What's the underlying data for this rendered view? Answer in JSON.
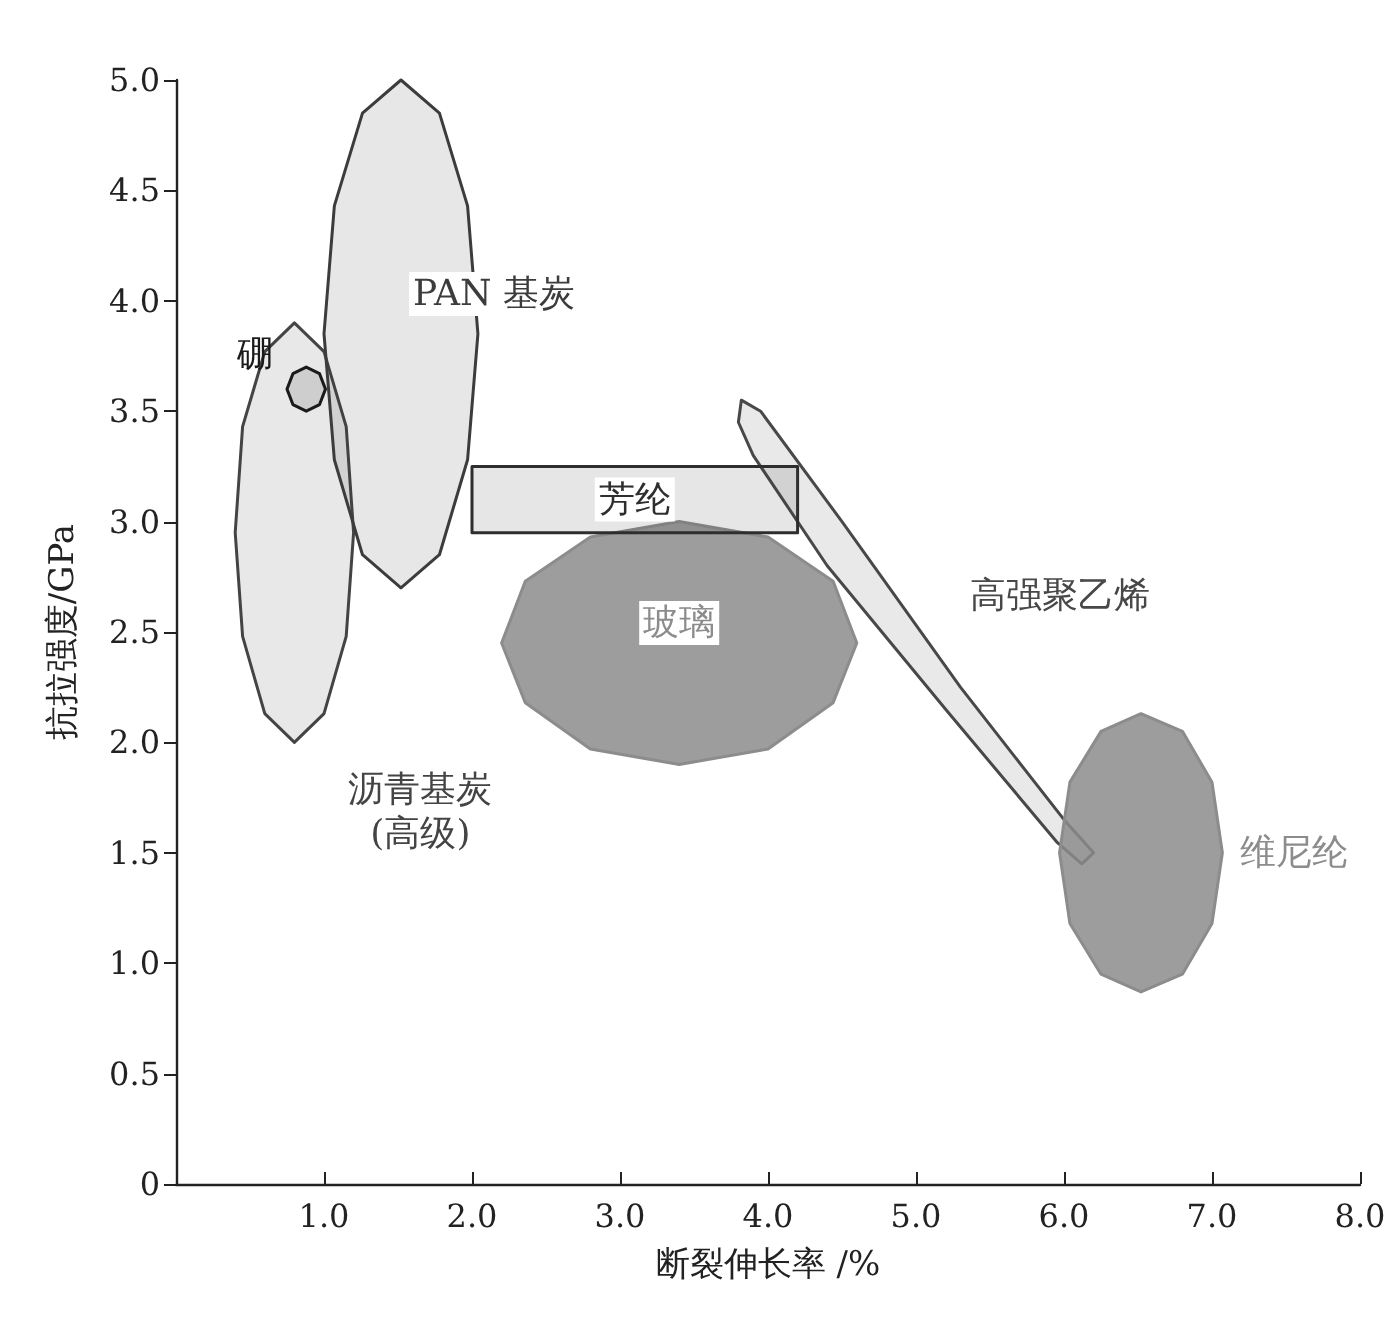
{
  "chart_data": {
    "type": "area",
    "xlabel": "断裂伸长率 /%",
    "ylabel": "抗拉强度/GPa",
    "xlim": [
      0,
      8.0
    ],
    "ylim": [
      0,
      5.0
    ],
    "xticks": [
      {
        "value": 1,
        "label": "1.0"
      },
      {
        "value": 2,
        "label": "2.0"
      },
      {
        "value": 3,
        "label": "3.0"
      },
      {
        "value": 4,
        "label": "4.0"
      },
      {
        "value": 5,
        "label": "5.0"
      },
      {
        "value": 6,
        "label": "6.0"
      },
      {
        "value": 7,
        "label": "7.0"
      },
      {
        "value": 8,
        "label": "8.0"
      }
    ],
    "yticks": [
      0,
      {
        "value": 0.5,
        "label": "0.5"
      },
      {
        "value": 1,
        "label": "1.0"
      },
      {
        "value": 1.5,
        "label": "1.5"
      },
      {
        "value": 2,
        "label": "2.0"
      },
      {
        "value": 2.5,
        "label": "2.5"
      },
      {
        "value": 3,
        "label": "3.0"
      },
      {
        "value": 3.5,
        "label": "3.5"
      },
      {
        "value": 4,
        "label": "4.0"
      },
      {
        "value": 4.5,
        "label": "4.5"
      },
      {
        "value": 5,
        "label": "5.0"
      }
    ],
    "grid": false,
    "marker": "none",
    "line_style": "solid",
    "series": [
      {
        "name": "沥青基炭\n(高级)",
        "color": "#444444",
        "x": [
          0.8,
          1.0,
          1.15,
          1.2,
          1.15,
          1.0,
          0.8,
          0.6,
          0.45,
          0.4,
          0.45,
          0.6,
          0.8
        ],
        "values": [
          3.9,
          3.77,
          3.43,
          2.95,
          2.48,
          2.13,
          2.0,
          2.13,
          2.48,
          2.95,
          3.43,
          3.77,
          3.9
        ]
      },
      {
        "name": "PAN 基炭",
        "color": "#3c3c3c",
        "x": [
          1.52,
          1.78,
          1.97,
          2.04,
          1.97,
          1.78,
          1.52,
          1.26,
          1.07,
          1.0,
          1.07,
          1.26,
          1.52
        ],
        "values": [
          5.0,
          4.85,
          4.43,
          3.85,
          3.28,
          2.85,
          2.7,
          2.85,
          3.28,
          3.85,
          4.43,
          4.85,
          5.0
        ]
      },
      {
        "name": "硼",
        "color": "#1a1a1a",
        "x": [
          0.88,
          0.97,
          1.01,
          0.97,
          0.88,
          0.79,
          0.75,
          0.79,
          0.88
        ],
        "values": [
          3.7,
          3.67,
          3.6,
          3.53,
          3.5,
          3.53,
          3.6,
          3.67,
          3.7
        ]
      },
      {
        "name": "玻璃",
        "color": "#8c8c8c",
        "x": [
          3.4,
          4.0,
          4.44,
          4.6,
          4.44,
          4.0,
          3.4,
          2.8,
          2.36,
          2.2,
          2.36,
          2.8,
          3.4
        ],
        "values": [
          3.0,
          2.93,
          2.73,
          2.45,
          2.18,
          1.97,
          1.9,
          1.97,
          2.18,
          2.45,
          2.73,
          2.93,
          3.0
        ]
      },
      {
        "name": "高强聚乙烯",
        "color": "#484848",
        "x": [
          3.82,
          3.95,
          4.5,
          5.3,
          6.0,
          6.2,
          6.12,
          5.95,
          5.2,
          4.4,
          3.9,
          3.8,
          3.82
        ],
        "values": [
          3.55,
          3.5,
          3.0,
          2.25,
          1.65,
          1.5,
          1.45,
          1.55,
          2.15,
          2.8,
          3.3,
          3.45,
          3.55
        ]
      },
      {
        "name": "维尼纶",
        "color": "#8c8c8c",
        "x": [
          6.52,
          6.8,
          7.0,
          7.07,
          7.0,
          6.8,
          6.52,
          6.25,
          6.04,
          5.97,
          6.04,
          6.25,
          6.52
        ],
        "values": [
          2.13,
          2.05,
          1.82,
          1.5,
          1.18,
          0.95,
          0.87,
          0.95,
          1.18,
          1.5,
          1.82,
          2.05,
          2.13
        ]
      },
      {
        "name": "芳纶",
        "color": "#2e2e2e",
        "x": [
          2.0,
          4.2,
          4.2,
          2.0,
          2.0
        ],
        "values": [
          2.95,
          2.95,
          3.25,
          3.25,
          2.95
        ]
      }
    ]
  }
}
